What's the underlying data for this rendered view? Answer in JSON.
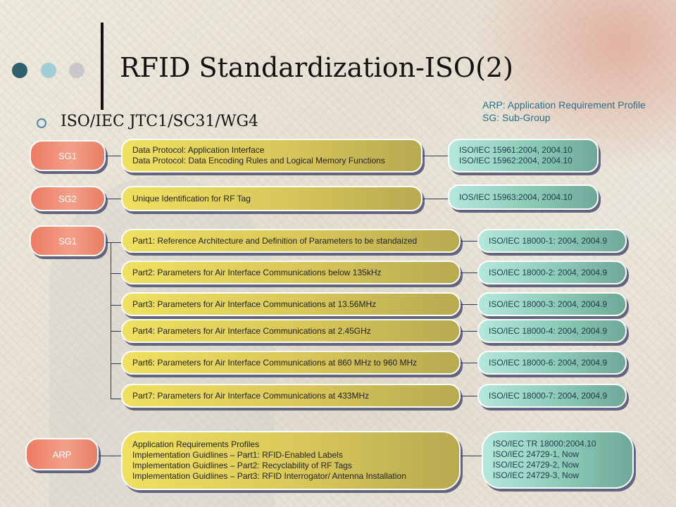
{
  "title": "RFID Standardization-ISO(2)",
  "subtitle": "ISO/IEC JTC1/SC31/WG4",
  "legend": {
    "line1": "ARP: Application Requirement Profile",
    "line2": "SG: Sub-Group"
  },
  "colors": {
    "dot1": "#2f5f6b",
    "dot2": "#a3cdd4",
    "dot3": "#c8c8c8",
    "sg_box": "#ee8a70",
    "desc_box": "#e2d25c",
    "std_box": "#8ccab7"
  },
  "groups": {
    "g1": {
      "sg": "SG1",
      "desc": [
        "Data Protocol: Application Interface",
        "Data Protocol: Data Encoding Rules and Logical Memory Functions"
      ],
      "std": [
        "ISO/IEC 15961:2004,  2004.10",
        "ISO/IEC 15962:2004,  2004.10"
      ]
    },
    "g2": {
      "sg": "SG2",
      "desc": "Unique Identification for RF Tag",
      "std": "IOS/IEC 15963:2004,  2004.10"
    },
    "g3": {
      "sg": "SG1",
      "rows": [
        {
          "desc": "Part1: Reference Architecture and Definition of Parameters to be standaized",
          "std": "ISO/IEC 18000-1:  2004,  2004.9"
        },
        {
          "desc": "Part2: Parameters for Air Interface Communications below 135kHz",
          "std": "ISO/IEC 18000-2:  2004,  2004.9"
        },
        {
          "desc": "Part3: Parameters for Air Interface Communications at 13.56MHz",
          "std": "ISO/IEC 18000-3:  2004,  2004.9"
        },
        {
          "desc": "Part4: Parameters for Air Interface Communications at 2.45GHz",
          "std": "ISO/IEC 18000-4:  2004,  2004.9"
        },
        {
          "desc": "Part6: Parameters for Air Interface Communications at 860 MHz to 960 MHz",
          "std": "ISO/IEC 18000-6:  2004,  2004.9"
        },
        {
          "desc": "Part7: Parameters for Air Interface Communications at 433MHz",
          "std": "ISO/IEC 18000-7:  2004,  2004.9"
        }
      ]
    },
    "g4": {
      "sg": "ARP",
      "desc": [
        "Application Requirements Profiles",
        "Implementation Guidlines – Part1: RFID-Enabled Labels",
        "Implementation Guidlines – Part2: Recyclability of RF Tags",
        "Implementation Guidlines – Part3: RFID Interrogator/ Antenna Installation"
      ],
      "std": [
        "ISO/IEC TR  18000:2004.10",
        "ISO/IEC 24729-1,  Now",
        "ISO/IEC 24729-2,  Now",
        "ISO/IEC 24729-3,  Now"
      ]
    }
  }
}
